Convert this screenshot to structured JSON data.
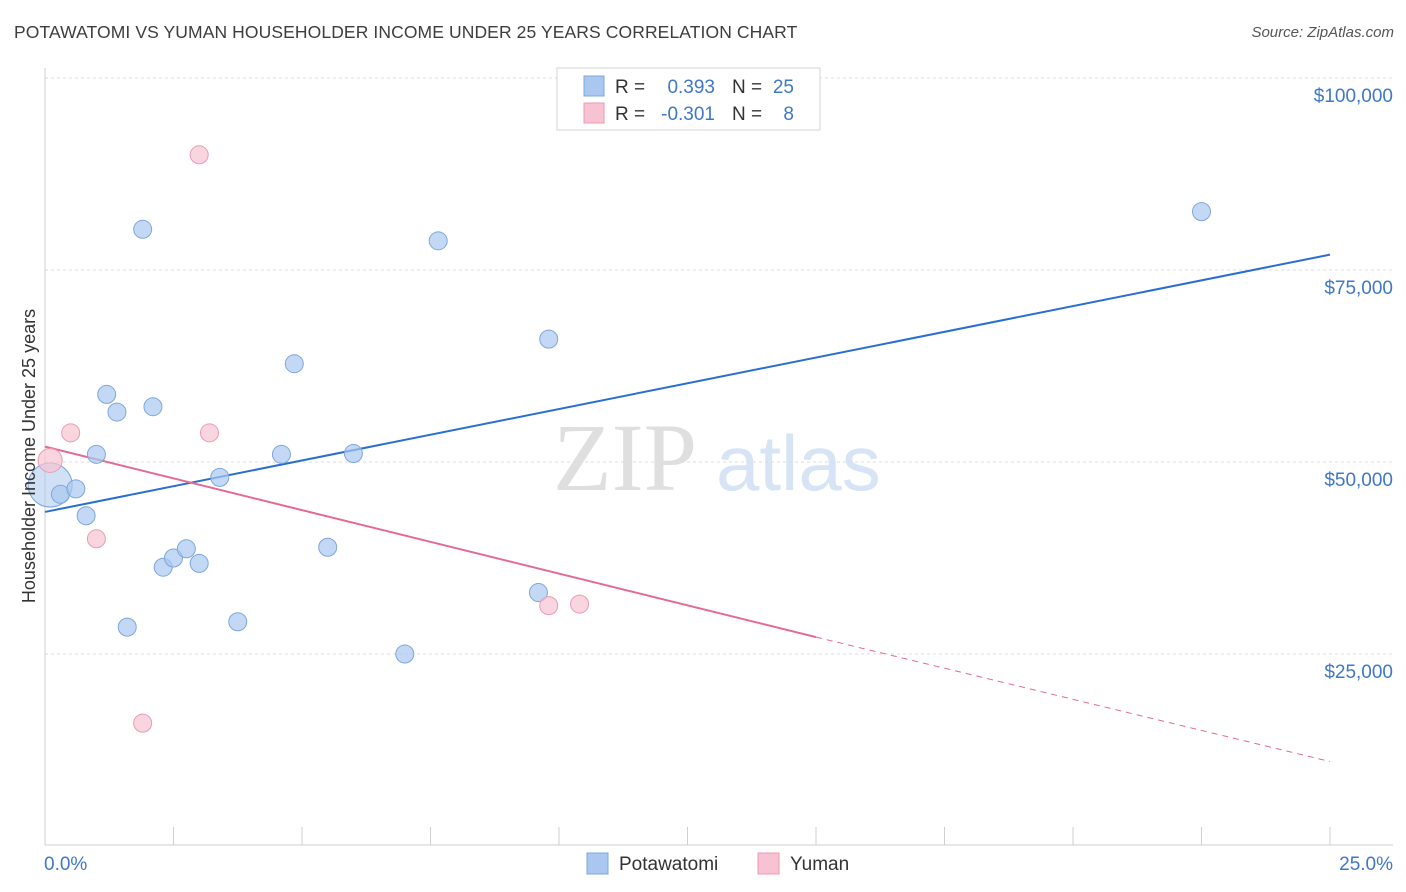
{
  "header": {
    "title": "POTAWATOMI VS YUMAN HOUSEHOLDER INCOME UNDER 25 YEARS CORRELATION CHART",
    "source": "Source: ZipAtlas.com"
  },
  "legend": {
    "rows": [
      {
        "r_label": "R =",
        "r_value": "0.393",
        "n_label": "N =",
        "n_value": "25"
      },
      {
        "r_label": "R =",
        "r_value": "-0.301",
        "n_label": "N =",
        "n_value": "8"
      }
    ]
  },
  "watermark": {
    "zip": "ZIP",
    "atlas": "atlas"
  },
  "chart_data": {
    "type": "scatter",
    "title": "POTAWATOMI VS YUMAN HOUSEHOLDER INCOME UNDER 25 YEARS CORRELATION CHART",
    "xlabel": "",
    "ylabel": "Householder Income Under 25 years",
    "xlim": [
      0,
      25
    ],
    "ylim": [
      0,
      105000
    ],
    "x_tick_labels": [
      "0.0%",
      "25.0%"
    ],
    "y_ticks": [
      25000,
      50000,
      75000,
      100000
    ],
    "y_tick_labels": [
      "$25,000",
      "$50,000",
      "$75,000",
      "$100,000"
    ],
    "grid": true,
    "series": [
      {
        "name": "Potawatomi",
        "color": "#aac8ef",
        "stroke": "#7ea7dc",
        "line_color": "#2a6fcf",
        "r": 0.393,
        "n": 25,
        "trend": {
          "x0": 0,
          "y0": 43500,
          "x1": 25,
          "y1": 77000
        },
        "points": [
          [
            0.1,
            47000
          ],
          [
            0.3,
            45800
          ],
          [
            0.6,
            46500
          ],
          [
            0.8,
            43000
          ],
          [
            1.0,
            51000
          ],
          [
            1.2,
            58800
          ],
          [
            1.4,
            56500
          ],
          [
            1.6,
            28500
          ],
          [
            1.9,
            80300
          ],
          [
            2.1,
            57200
          ],
          [
            2.3,
            36300
          ],
          [
            2.5,
            37500
          ],
          [
            2.75,
            38700
          ],
          [
            3.0,
            36800
          ],
          [
            3.4,
            48000
          ],
          [
            3.75,
            29200
          ],
          [
            4.6,
            51000
          ],
          [
            4.85,
            62800
          ],
          [
            5.5,
            38900
          ],
          [
            6.0,
            51100
          ],
          [
            7.0,
            25000
          ],
          [
            7.65,
            78800
          ],
          [
            9.6,
            33000
          ],
          [
            9.8,
            66000
          ],
          [
            22.5,
            82600
          ]
        ],
        "point_sizes": [
          22,
          9,
          9,
          9,
          9,
          9,
          9,
          9,
          9,
          9,
          9,
          9,
          9,
          9,
          9,
          9,
          9,
          9,
          9,
          9,
          9,
          9,
          9,
          9,
          9
        ]
      },
      {
        "name": "Yuman",
        "color": "#f7c3d3",
        "stroke": "#ec9ab4",
        "line_color": "#e46a94",
        "r": -0.301,
        "n": 8,
        "trend": {
          "x0": 0,
          "y0": 52000,
          "x1": 15,
          "y1": 27200,
          "dash_to_x": 25,
          "dash_to_y": 11000
        },
        "points": [
          [
            0.1,
            50200
          ],
          [
            0.5,
            53800
          ],
          [
            1.0,
            40000
          ],
          [
            1.9,
            16000
          ],
          [
            3.0,
            90000
          ],
          [
            3.2,
            53800
          ],
          [
            9.8,
            31300
          ],
          [
            10.4,
            31500
          ]
        ],
        "point_sizes": [
          12,
          9,
          9,
          9,
          9,
          9,
          9,
          9
        ]
      }
    ]
  }
}
